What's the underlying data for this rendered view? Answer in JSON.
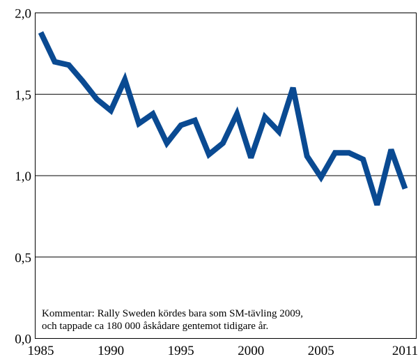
{
  "chart_data": {
    "type": "line",
    "title": "",
    "xlabel": "",
    "ylabel": "",
    "xlim": [
      1985,
      2011
    ],
    "ylim": [
      0,
      2
    ],
    "grid": "horizontal",
    "x_ticks": [
      1985,
      1990,
      1995,
      2000,
      2005,
      2011
    ],
    "x_tick_labels": [
      "1985",
      "1990",
      "1995",
      "2000",
      "2005",
      "2011"
    ],
    "y_ticks": [
      0,
      0.5,
      1.0,
      1.5,
      2.0
    ],
    "y_tick_labels": [
      "0,0",
      "0,5",
      "1,0",
      "1,5",
      "2,0"
    ],
    "series": [
      {
        "color": "#0a4a92",
        "x": [
          1985,
          1986,
          1987,
          1988,
          1989,
          1990,
          1991,
          1992,
          1993,
          1994,
          1995,
          1996,
          1997,
          1998,
          1999,
          2000,
          2001,
          2002,
          2003,
          2004,
          2005,
          2006,
          2007,
          2008,
          2009,
          2010,
          2011
        ],
        "values": [
          1.88,
          1.7,
          1.68,
          1.58,
          1.47,
          1.4,
          1.59,
          1.32,
          1.38,
          1.2,
          1.31,
          1.34,
          1.13,
          1.2,
          1.38,
          1.11,
          1.36,
          1.27,
          1.54,
          1.12,
          0.99,
          1.14,
          1.14,
          1.1,
          0.82,
          1.16,
          0.92
        ]
      }
    ],
    "annotation": [
      "Kommentar: Rally Sweden kördes bara som SM-tävling 2009,",
      "och tappade ca 180 000 åskådare gentemot tidigare år."
    ]
  }
}
